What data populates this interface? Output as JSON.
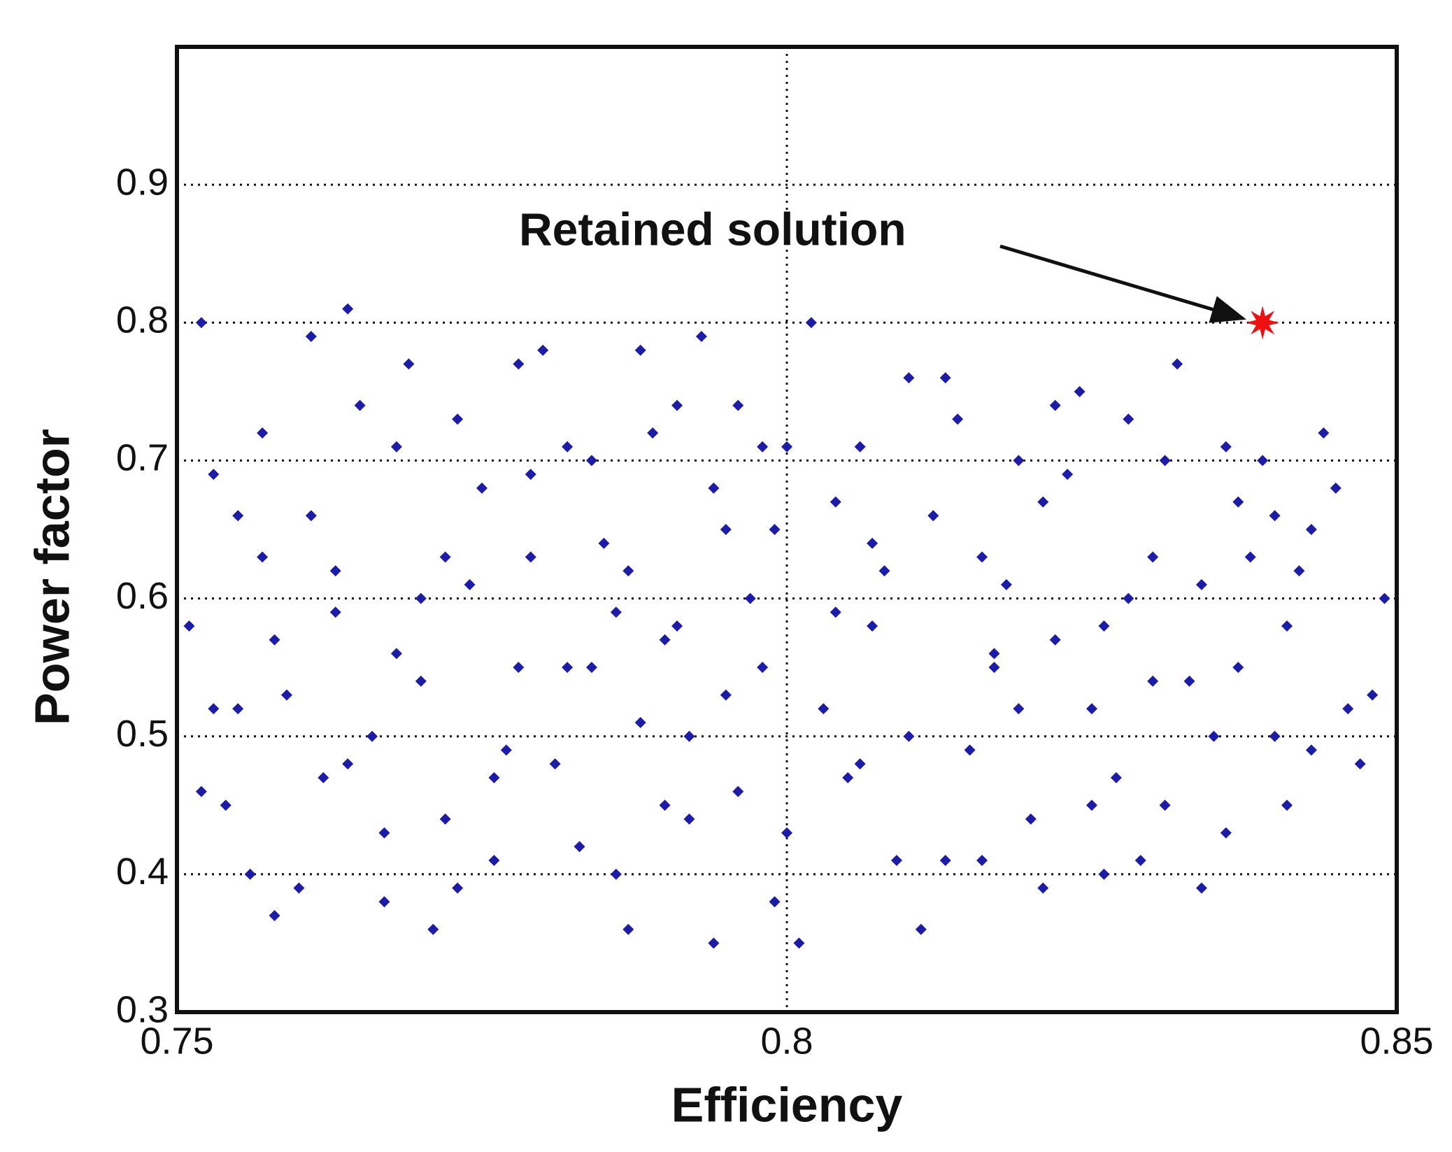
{
  "chart_data": {
    "type": "scatter",
    "x_label": "Efficiency",
    "y_label": "Power factor",
    "annotation": "Retained solution",
    "xlim": [
      0.75,
      0.85
    ],
    "xticks": [
      0.75,
      0.8,
      0.85
    ],
    "ylim": [
      0.3,
      1.0
    ],
    "yticks": [
      0.3,
      0.4,
      0.5,
      0.6,
      0.7,
      0.8,
      0.9
    ],
    "grid": true,
    "series": [
      {
        "color": "#1c1ca8",
        "x": [
          0.751,
          0.754,
          0.757,
          0.76,
          0.763,
          0.766,
          0.769,
          0.772,
          0.775,
          0.778,
          0.752,
          0.755,
          0.758,
          0.761,
          0.764,
          0.767,
          0.77,
          0.773,
          0.776,
          0.779,
          0.781,
          0.784,
          0.787,
          0.79,
          0.793,
          0.796,
          0.799,
          0.753,
          0.756,
          0.759,
          0.762,
          0.765,
          0.768,
          0.771,
          0.774,
          0.777,
          0.78,
          0.783,
          0.786,
          0.789,
          0.792,
          0.795,
          0.798,
          0.801,
          0.804,
          0.807,
          0.81,
          0.813,
          0.816,
          0.819,
          0.822,
          0.825,
          0.828,
          0.831,
          0.834,
          0.837,
          0.84,
          0.843,
          0.846,
          0.849,
          0.802,
          0.805,
          0.808,
          0.811,
          0.814,
          0.817,
          0.82,
          0.823,
          0.826,
          0.829,
          0.832,
          0.835,
          0.838,
          0.841,
          0.844,
          0.847,
          0.803,
          0.806,
          0.809,
          0.812,
          0.815,
          0.818,
          0.821,
          0.824,
          0.827,
          0.83,
          0.833,
          0.836,
          0.839,
          0.842,
          0.785,
          0.788,
          0.791,
          0.794,
          0.797,
          0.8,
          0.782,
          0.779,
          0.776,
          0.773,
          0.77,
          0.767,
          0.764,
          0.761,
          0.758,
          0.755,
          0.752,
          0.8,
          0.798,
          0.796,
          0.794,
          0.792,
          0.79,
          0.788,
          0.786,
          0.784,
          0.804,
          0.807,
          0.81,
          0.813,
          0.816,
          0.819,
          0.822,
          0.825,
          0.828,
          0.831,
          0.834,
          0.837,
          0.84,
          0.843,
          0.817,
          0.821,
          0.826,
          0.83,
          0.836,
          0.841,
          0.845,
          0.848,
          0.772,
          0.768,
          0.763,
          0.757,
          0.753,
          0.778,
          0.782,
          0.787,
          0.791,
          0.795,
          0.799,
          0.806
        ],
        "y": [
          0.58,
          0.45,
          0.72,
          0.39,
          0.62,
          0.5,
          0.77,
          0.44,
          0.68,
          0.55,
          0.8,
          0.52,
          0.37,
          0.66,
          0.81,
          0.43,
          0.6,
          0.73,
          0.41,
          0.63,
          0.48,
          0.7,
          0.36,
          0.57,
          0.79,
          0.46,
          0.65,
          0.69,
          0.4,
          0.53,
          0.47,
          0.74,
          0.56,
          0.36,
          0.61,
          0.49,
          0.78,
          0.42,
          0.59,
          0.72,
          0.44,
          0.53,
          0.71,
          0.35,
          0.67,
          0.58,
          0.76,
          0.41,
          0.63,
          0.52,
          0.74,
          0.45,
          0.6,
          0.7,
          0.39,
          0.55,
          0.66,
          0.49,
          0.52,
          0.6,
          0.8,
          0.47,
          0.62,
          0.36,
          0.73,
          0.55,
          0.44,
          0.69,
          0.58,
          0.41,
          0.77,
          0.5,
          0.63,
          0.58,
          0.72,
          0.48,
          0.52,
          0.71,
          0.41,
          0.66,
          0.49,
          0.61,
          0.39,
          0.75,
          0.47,
          0.63,
          0.54,
          0.43,
          0.7,
          0.62,
          0.64,
          0.51,
          0.74,
          0.35,
          0.6,
          0.43,
          0.55,
          0.69,
          0.47,
          0.39,
          0.54,
          0.38,
          0.48,
          0.79,
          0.57,
          0.66,
          0.46,
          0.71,
          0.55,
          0.74,
          0.68,
          0.5,
          0.45,
          0.78,
          0.4,
          0.55,
          0.59,
          0.64,
          0.5,
          0.76,
          0.41,
          0.7,
          0.57,
          0.52,
          0.73,
          0.45,
          0.61,
          0.67,
          0.5,
          0.65,
          0.56,
          0.67,
          0.4,
          0.54,
          0.71,
          0.45,
          0.68,
          0.53,
          0.63,
          0.71,
          0.59,
          0.63,
          0.52,
          0.77,
          0.71,
          0.62,
          0.58,
          0.65,
          0.38,
          0.48
        ]
      }
    ],
    "highlight": {
      "x": 0.839,
      "y": 0.8,
      "color": "#ee1111"
    }
  }
}
